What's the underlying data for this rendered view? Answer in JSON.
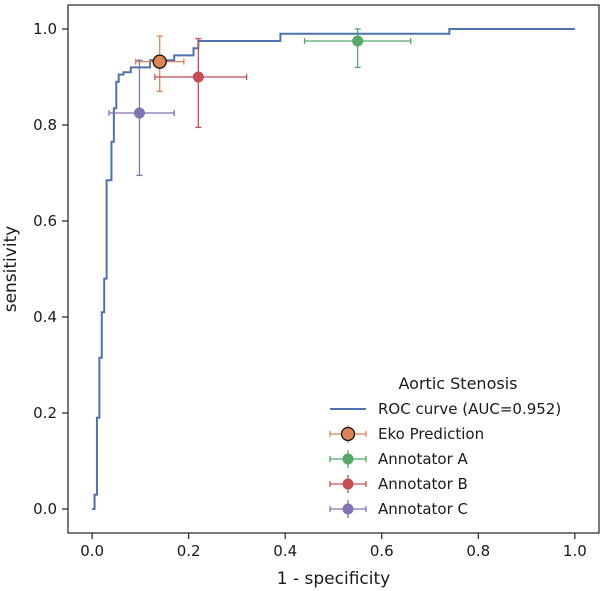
{
  "chart_data": {
    "type": "line",
    "title": "",
    "xlabel": "1 - specificity",
    "ylabel": "sensitivity",
    "xlim": [
      -0.05,
      1.05
    ],
    "ylim": [
      -0.05,
      1.05
    ],
    "x_ticks": [
      {
        "value": 0.0,
        "label": "0.0"
      },
      {
        "value": 0.2,
        "label": "0.2"
      },
      {
        "value": 0.4,
        "label": "0.4"
      },
      {
        "value": 0.6,
        "label": "0.6"
      },
      {
        "value": 0.8,
        "label": "0.8"
      },
      {
        "value": 1.0,
        "label": "1.0"
      }
    ],
    "y_ticks": [
      {
        "value": 0.0,
        "label": "0.0"
      },
      {
        "value": 0.2,
        "label": "0.2"
      },
      {
        "value": 0.4,
        "label": "0.4"
      },
      {
        "value": 0.6,
        "label": "0.6"
      },
      {
        "value": 0.8,
        "label": "0.8"
      },
      {
        "value": 1.0,
        "label": "1.0"
      }
    ],
    "grid": false,
    "legend": {
      "title": "Aortic Stenosis",
      "placement": "lower-right"
    },
    "roc_curve": {
      "name": "ROC curve (AUC=0.952)",
      "color": "#4c72b0",
      "x": [
        0.0,
        0.005,
        0.005,
        0.01,
        0.01,
        0.015,
        0.015,
        0.02,
        0.02,
        0.025,
        0.025,
        0.03,
        0.03,
        0.04,
        0.04,
        0.045,
        0.045,
        0.05,
        0.05,
        0.055,
        0.055,
        0.065,
        0.065,
        0.08,
        0.08,
        0.12,
        0.12,
        0.17,
        0.17,
        0.21,
        0.21,
        0.22,
        0.22,
        0.39,
        0.39,
        0.74,
        0.74,
        1.0
      ],
      "y": [
        0.0,
        0.0,
        0.03,
        0.03,
        0.19,
        0.19,
        0.315,
        0.315,
        0.41,
        0.41,
        0.48,
        0.48,
        0.685,
        0.685,
        0.765,
        0.765,
        0.835,
        0.835,
        0.89,
        0.89,
        0.905,
        0.905,
        0.91,
        0.91,
        0.92,
        0.92,
        0.935,
        0.935,
        0.945,
        0.945,
        0.96,
        0.96,
        0.975,
        0.975,
        0.99,
        0.99,
        1.0,
        1.0
      ]
    },
    "points": [
      {
        "name": "Eko Prediction",
        "color": "#dd8452",
        "x": 0.14,
        "y": 0.932,
        "xerr": [
          0.09,
          0.19
        ],
        "yerr": [
          0.87,
          0.985
        ],
        "edge": true
      },
      {
        "name": "Annotator A",
        "color": "#55a868",
        "x": 0.55,
        "y": 0.975,
        "xerr": [
          0.44,
          0.66
        ],
        "yerr": [
          0.92,
          1.0
        ],
        "edge": false
      },
      {
        "name": "Annotator B",
        "color": "#c44e52",
        "x": 0.22,
        "y": 0.9,
        "xerr": [
          0.13,
          0.32
        ],
        "yerr": [
          0.795,
          0.98
        ],
        "edge": false
      },
      {
        "name": "Annotator C",
        "color": "#8172b3",
        "x": 0.098,
        "y": 0.825,
        "xerr": [
          0.035,
          0.17
        ],
        "yerr": [
          0.695,
          0.935
        ],
        "edge": false
      }
    ]
  }
}
